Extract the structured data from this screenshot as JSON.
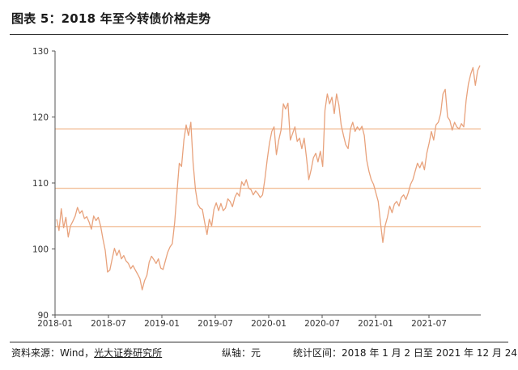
{
  "header": {
    "title": "图表 5：2018 年至今转债价格走势"
  },
  "footer": {
    "source_prefix": "资料来源：Wind，",
    "source_org": "光大证券研究所",
    "unit": "纵轴：元",
    "range": "统计区间：2018 年 1 月 2 日至 2021 年 12 月 24 日"
  },
  "colors": {
    "line": "#e8a27c",
    "hline": "#f2c09b",
    "axis": "#555555"
  },
  "chart_data": {
    "type": "line",
    "title": "",
    "xlabel": "",
    "ylabel": "元",
    "ylim": [
      90,
      130
    ],
    "yticks": [
      90,
      100,
      110,
      120,
      130
    ],
    "x_tick_labels": [
      "2018-01",
      "2018-07",
      "2019-01",
      "2019-07",
      "2020-01",
      "2020-07",
      "2021-01",
      "2021-07"
    ],
    "reference_lines": [
      118.2,
      109.2,
      103.4
    ],
    "series": [
      {
        "values": [
          104.5,
          102.8,
          106.1,
          103.2,
          104.8,
          101.8,
          103.5,
          104.2,
          105.0,
          106.3,
          105.4,
          105.8,
          104.6,
          104.9,
          104.1,
          103.0,
          105.0,
          104.3,
          104.8,
          103.5,
          101.5,
          99.8,
          96.5,
          96.8,
          98.5,
          100.1,
          99.0,
          99.8,
          98.5,
          99.0,
          98.2,
          97.8,
          97.0,
          97.5,
          96.8,
          96.2,
          95.5,
          93.8,
          95.2,
          96.0,
          98.0,
          98.9,
          98.4,
          97.8,
          98.5,
          97.1,
          96.9,
          98.2,
          99.5,
          100.3,
          100.8,
          104.0,
          108.5,
          113.0,
          112.5,
          116.5,
          118.8,
          117.2,
          119.2,
          113.0,
          109.0,
          106.8,
          106.2,
          106.0,
          104.0,
          102.2,
          104.5,
          103.5,
          106.0,
          107.0,
          105.8,
          106.9,
          105.8,
          106.2,
          107.6,
          107.2,
          106.4,
          107.8,
          108.5,
          108.0,
          110.2,
          109.6,
          110.5,
          109.2,
          109.0,
          108.2,
          108.8,
          108.4,
          107.8,
          108.2,
          110.5,
          113.5,
          116.0,
          117.8,
          118.5,
          114.3,
          116.5,
          118.0,
          122.0,
          121.2,
          122.1,
          116.5,
          117.5,
          118.5,
          116.3,
          116.8,
          115.2,
          116.8,
          113.8,
          110.5,
          112.0,
          113.8,
          114.5,
          113.2,
          114.8,
          112.5,
          121.0,
          123.5,
          122.0,
          123.0,
          120.5,
          123.5,
          121.8,
          118.8,
          117.2,
          115.8,
          115.2,
          118.2,
          119.2,
          117.8,
          118.5,
          118.0,
          118.6,
          117.2,
          113.5,
          111.8,
          110.5,
          109.8,
          108.5,
          107.2,
          104.0,
          101.0,
          103.5,
          104.8,
          106.5,
          105.5,
          106.8,
          107.2,
          106.5,
          107.8,
          108.2,
          107.5,
          108.5,
          109.8,
          110.5,
          111.8,
          113.0,
          112.3,
          113.2,
          112.0,
          114.5,
          116.0,
          117.8,
          116.5,
          118.8,
          119.2,
          120.5,
          123.5,
          124.2,
          120.0,
          119.5,
          118.0,
          119.2,
          118.5,
          118.2,
          119.0,
          118.5,
          122.5,
          125.0,
          126.5,
          127.5,
          124.8,
          127.0,
          127.8
        ]
      }
    ]
  }
}
